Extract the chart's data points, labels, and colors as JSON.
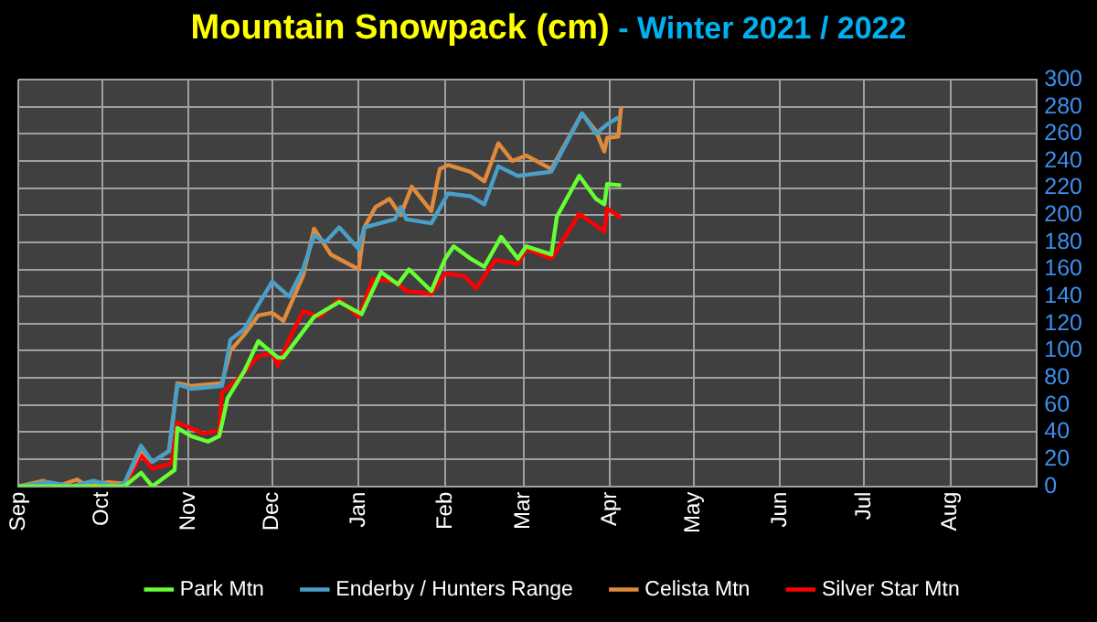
{
  "chart_data": {
    "type": "line",
    "title": "Mountain Snowpack (cm)",
    "subtitle": " - Winter 2021 / 2022",
    "xlim": [
      "2021-09-01",
      "2022-09-01"
    ],
    "xticks": [
      {
        "value": "2021-09-01",
        "label": "Sep"
      },
      {
        "value": "2021-10-01",
        "label": "Oct"
      },
      {
        "value": "2021-11-01",
        "label": "Nov"
      },
      {
        "value": "2021-12-01",
        "label": "Dec"
      },
      {
        "value": "2022-01-01",
        "label": "Jan"
      },
      {
        "value": "2022-02-01",
        "label": "Feb"
      },
      {
        "value": "2022-03-01",
        "label": "Mar"
      },
      {
        "value": "2022-04-01",
        "label": "Apr"
      },
      {
        "value": "2022-05-01",
        "label": "May"
      },
      {
        "value": "2022-06-01",
        "label": "Jun"
      },
      {
        "value": "2022-07-01",
        "label": "Jul"
      },
      {
        "value": "2022-08-01",
        "label": "Aug"
      }
    ],
    "ylim": [
      0,
      300
    ],
    "yticks": [
      0,
      20,
      40,
      60,
      80,
      100,
      120,
      140,
      160,
      180,
      200,
      220,
      240,
      260,
      280,
      300
    ],
    "grid": true,
    "legend": "bottom",
    "series": [
      {
        "name": "Park Mtn",
        "color": "#66ff33",
        "x": [
          "2021-09-01",
          "2021-10-09",
          "2021-10-15",
          "2021-10-19",
          "2021-10-25",
          "2021-10-27",
          "2021-10-28",
          "2021-11-02",
          "2021-11-08",
          "2021-11-12",
          "2021-11-15",
          "2021-11-21",
          "2021-11-26",
          "2021-12-03",
          "2021-12-05",
          "2021-12-16",
          "2021-12-25",
          "2022-01-02",
          "2022-01-09",
          "2022-01-15",
          "2022-01-19",
          "2022-01-27",
          "2022-02-01",
          "2022-02-04",
          "2022-02-10",
          "2022-02-15",
          "2022-02-21",
          "2022-02-27",
          "2022-03-02",
          "2022-03-11",
          "2022-03-13",
          "2022-03-21",
          "2022-03-27",
          "2022-03-30",
          "2022-03-31",
          "2022-04-05"
        ],
        "values": [
          0,
          0,
          10,
          0,
          9,
          12,
          43,
          37,
          33,
          37,
          65,
          85,
          107,
          95,
          95,
          125,
          136,
          127,
          158,
          149,
          160,
          144,
          168,
          177,
          168,
          162,
          184,
          168,
          177,
          171,
          199,
          229,
          212,
          208,
          223,
          222
        ]
      },
      {
        "name": "Enderby / Hunters Range",
        "color": "#4a9fc8",
        "x": [
          "2021-09-01",
          "2021-09-12",
          "2021-09-20",
          "2021-09-28",
          "2021-10-05",
          "2021-10-09",
          "2021-10-15",
          "2021-10-19",
          "2021-10-25",
          "2021-10-28",
          "2021-11-02",
          "2021-11-13",
          "2021-11-16",
          "2021-11-21",
          "2021-11-26",
          "2021-12-01",
          "2021-12-07",
          "2021-12-12",
          "2021-12-16",
          "2021-12-20",
          "2021-12-25",
          "2022-01-01",
          "2022-01-03",
          "2022-01-14",
          "2022-01-16",
          "2022-01-18",
          "2022-01-27",
          "2022-02-02",
          "2022-02-10",
          "2022-02-15",
          "2022-02-20",
          "2022-02-27",
          "2022-03-11",
          "2022-03-22",
          "2022-03-27",
          "2022-03-31",
          "2022-04-04"
        ],
        "values": [
          0,
          3,
          0,
          4,
          0,
          2,
          30,
          18,
          26,
          75,
          72,
          74,
          108,
          116,
          134,
          151,
          140,
          160,
          185,
          180,
          191,
          175,
          191,
          197,
          206,
          197,
          194,
          216,
          214,
          208,
          236,
          229,
          232,
          275,
          260,
          267,
          272
        ]
      },
      {
        "name": "Celista Mtn",
        "color": "#e08a3c",
        "x": [
          "2021-09-01",
          "2021-09-10",
          "2021-09-15",
          "2021-09-22",
          "2021-09-26",
          "2021-10-03",
          "2021-10-09",
          "2021-10-15",
          "2021-10-19",
          "2021-10-25",
          "2021-10-28",
          "2021-11-02",
          "2021-11-13",
          "2021-11-16",
          "2021-11-21",
          "2021-11-26",
          "2021-12-01",
          "2021-12-05",
          "2021-12-12",
          "2021-12-16",
          "2021-12-22",
          "2022-01-01",
          "2022-01-03",
          "2022-01-07",
          "2022-01-12",
          "2022-01-16",
          "2022-01-20",
          "2022-01-27",
          "2022-01-30",
          "2022-02-02",
          "2022-02-10",
          "2022-02-15",
          "2022-02-20",
          "2022-02-25",
          "2022-03-02",
          "2022-03-11",
          "2022-03-22",
          "2022-03-27",
          "2022-03-30",
          "2022-03-31",
          "2022-04-04",
          "2022-04-05"
        ],
        "values": [
          0,
          4,
          0,
          5,
          0,
          3,
          2,
          27,
          18,
          26,
          76,
          74,
          76,
          100,
          112,
          126,
          128,
          122,
          155,
          190,
          171,
          160,
          191,
          206,
          212,
          200,
          221,
          203,
          234,
          237,
          232,
          225,
          253,
          240,
          244,
          234,
          275,
          262,
          247,
          257,
          258,
          280
        ]
      },
      {
        "name": "Silver Star Mtn",
        "color": "#ff0000",
        "x": [
          "2021-09-01",
          "2021-10-09",
          "2021-10-15",
          "2021-10-19",
          "2021-10-26",
          "2021-10-28",
          "2021-11-02",
          "2021-11-06",
          "2021-11-12",
          "2021-11-13",
          "2021-11-18",
          "2021-11-21",
          "2021-11-26",
          "2021-12-01",
          "2021-12-03",
          "2021-12-07",
          "2021-12-12",
          "2021-12-18",
          "2021-12-25",
          "2022-01-01",
          "2022-01-06",
          "2022-01-14",
          "2022-01-18",
          "2022-01-27",
          "2022-02-01",
          "2022-02-08",
          "2022-02-12",
          "2022-02-19",
          "2022-02-27",
          "2022-03-02",
          "2022-03-11",
          "2022-03-15",
          "2022-03-21",
          "2022-03-30",
          "2022-03-31",
          "2022-04-05"
        ],
        "values": [
          0,
          0,
          23,
          13,
          17,
          47,
          43,
          39,
          41,
          69,
          78,
          84,
          96,
          98,
          89,
          108,
          129,
          125,
          138,
          125,
          153,
          151,
          144,
          142,
          157,
          155,
          146,
          167,
          164,
          175,
          168,
          181,
          201,
          188,
          205,
          198
        ]
      }
    ]
  }
}
